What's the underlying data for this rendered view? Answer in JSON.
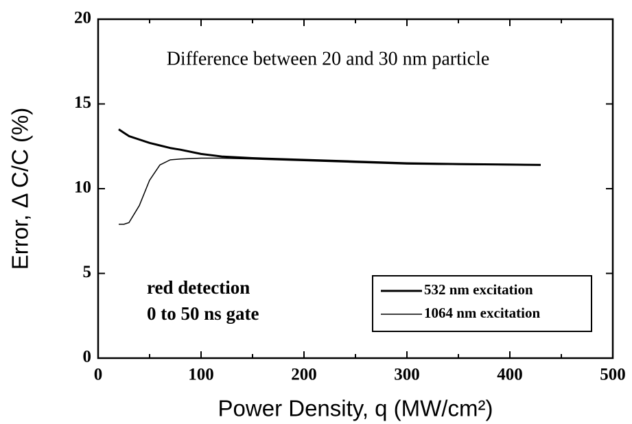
{
  "chart_data": {
    "type": "line",
    "annotations": [
      "Difference between 20 and 30 nm particle",
      "red detection",
      "0 to 50 ns gate"
    ],
    "xlabel": "Power Density, q (MW/cm²)",
    "ylabel": "Error, Δ C/C (%)",
    "x": [
      20,
      25,
      30,
      40,
      50,
      60,
      70,
      80,
      100,
      120,
      150,
      200,
      250,
      300,
      350,
      400,
      430
    ],
    "series": [
      {
        "name": "532 nm excitation",
        "color": "#000000",
        "linewidth": 3,
        "values": [
          13.5,
          13.3,
          13.1,
          12.9,
          12.7,
          12.55,
          12.4,
          12.3,
          12.05,
          11.9,
          11.8,
          11.7,
          11.6,
          11.5,
          11.45,
          11.42,
          11.4
        ]
      },
      {
        "name": "1064 nm excitation",
        "color": "#000000",
        "linewidth": 1.5,
        "values": [
          7.9,
          7.9,
          8.0,
          9.0,
          10.5,
          11.4,
          11.7,
          11.75,
          11.8,
          11.8,
          11.75,
          11.65,
          11.55,
          11.45,
          11.42,
          11.4,
          11.4
        ]
      }
    ],
    "xlim": [
      0,
      500
    ],
    "xticks": [
      0,
      100,
      200,
      300,
      400,
      500
    ],
    "xminorticks": [
      50,
      150,
      250,
      350,
      450
    ],
    "ylim": [
      0,
      20
    ],
    "yticks": [
      0,
      5,
      10,
      15,
      20
    ],
    "legend": "lower right",
    "grid": false
  }
}
